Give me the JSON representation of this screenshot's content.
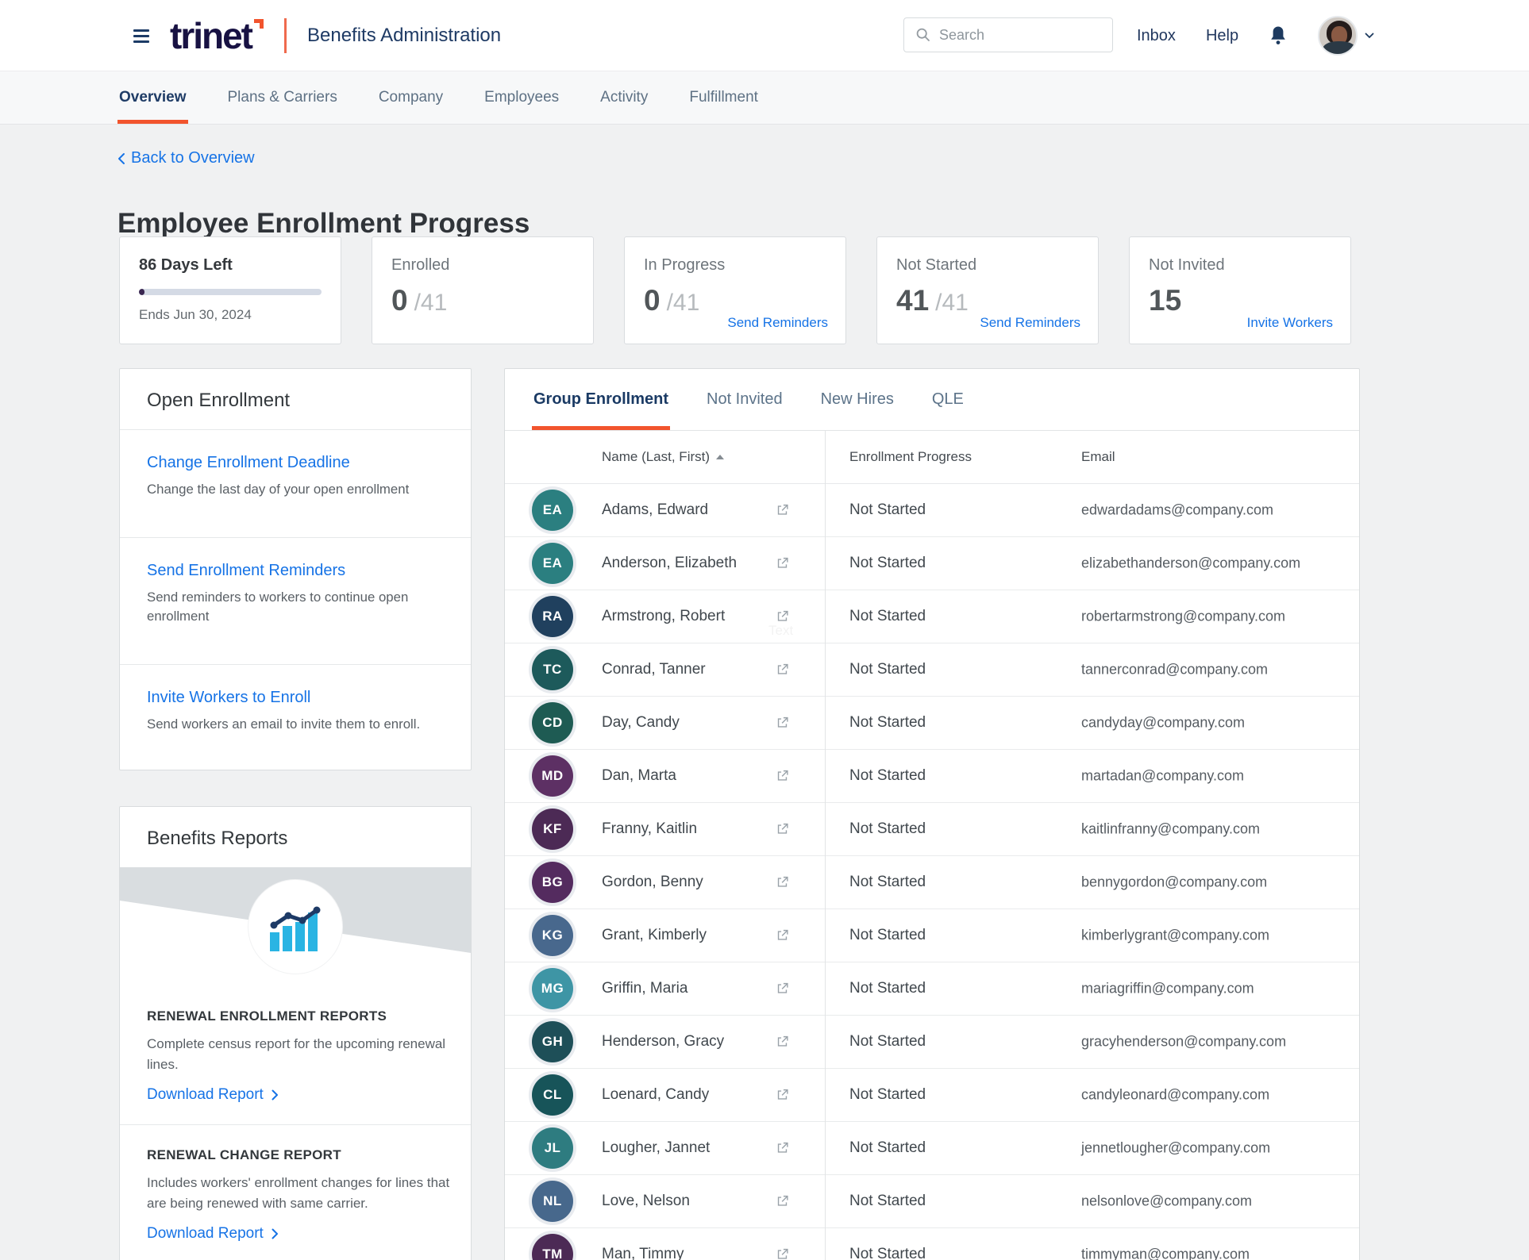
{
  "colors": {
    "accent_orange": "#f2542d",
    "link_blue": "#1673e6",
    "navy": "#1c3b66",
    "logo_navy": "#181243",
    "progress_fill": "#3a2751",
    "progress_track": "#d4dae5",
    "illustration_bars": "#2ab4e3",
    "illustration_line": "#1d3a66"
  },
  "header": {
    "logo_text": "trinet",
    "app_title": "Benefits Administration",
    "search_placeholder": "Search",
    "links": {
      "inbox": "Inbox",
      "help": "Help"
    },
    "icons": [
      "hamburger-icon",
      "search-icon",
      "bell-icon",
      "chevron-down-icon"
    ]
  },
  "nav": {
    "tabs": [
      {
        "label": "Overview",
        "active": true
      },
      {
        "label": "Plans & Carriers"
      },
      {
        "label": "Company"
      },
      {
        "label": "Employees"
      },
      {
        "label": "Activity"
      },
      {
        "label": "Fulfillment"
      }
    ]
  },
  "page": {
    "back_link": "Back to Overview",
    "title": "Employee Enrollment Progress"
  },
  "stats": {
    "cards": [
      {
        "title": "86 Days Left",
        "subtitle": "Ends Jun 30, 2024",
        "progress_percent": 3
      },
      {
        "label": "Enrolled",
        "value": "0",
        "total": "/41"
      },
      {
        "label": "In Progress",
        "value": "0",
        "total": "/41",
        "link": "Send Reminders"
      },
      {
        "label": "Not Started",
        "value": "41",
        "total": "/41",
        "link": "Send Reminders"
      },
      {
        "label": "Not Invited",
        "value": "15",
        "link": "Invite Workers"
      }
    ]
  },
  "open_enrollment": {
    "title": "Open Enrollment",
    "items": [
      {
        "link": "Change Enrollment Deadline",
        "description": "Change the last day of your open enrollment"
      },
      {
        "link": "Send Enrollment Reminders",
        "description": "Send reminders to workers to continue open enrollment"
      },
      {
        "link": "Invite Workers to Enroll",
        "description": "Send workers an email to invite them to enroll."
      }
    ]
  },
  "benefits_reports": {
    "title": "Benefits Reports",
    "illustration_icon": "bar-chart-trend-icon",
    "sections": [
      {
        "heading": "RENEWAL ENROLLMENT REPORTS",
        "description": "Complete census report for the upcoming renewal lines.",
        "link": "Download Report"
      },
      {
        "heading": "RENEWAL CHANGE REPORT",
        "description": "Includes workers' enrollment changes for lines that are being renewed with same carrier.",
        "link": "Download Report"
      }
    ]
  },
  "enrollment_table": {
    "tabs": [
      {
        "label": "Group Enrollment",
        "active": true
      },
      {
        "label": "Not Invited"
      },
      {
        "label": "New Hires"
      },
      {
        "label": "QLE"
      }
    ],
    "columns": {
      "name": "Name (Last, First)",
      "progress": "Enrollment Progress",
      "email": "Email"
    },
    "artifact_text": "Text",
    "rows": [
      {
        "name": "Adams, Edward",
        "initials": "EA",
        "avatar_color": "#2b7f80",
        "status": "Not Started",
        "email": "edwardadams@company.com"
      },
      {
        "name": "Anderson, Elizabeth",
        "initials": "EA",
        "avatar_color": "#2b7f80",
        "status": "Not Started",
        "email": "elizabethanderson@company.com"
      },
      {
        "name": "Armstrong, Robert",
        "initials": "RA",
        "avatar_color": "#20405e",
        "status": "Not Started",
        "email": "robertarmstrong@company.com"
      },
      {
        "name": "Conrad, Tanner",
        "initials": "TC",
        "avatar_color": "#1d5a5b",
        "status": "Not Started",
        "email": "tannerconrad@company.com"
      },
      {
        "name": "Day, Candy",
        "initials": "CD",
        "avatar_color": "#1e5b53",
        "status": "Not Started",
        "email": "candyday@company.com"
      },
      {
        "name": "Dan, Marta",
        "initials": "MD",
        "avatar_color": "#5d3064",
        "status": "Not Started",
        "email": "martadan@company.com"
      },
      {
        "name": "Franny, Kaitlin",
        "initials": "KF",
        "avatar_color": "#4c2a55",
        "status": "Not Started",
        "email": "kaitlinfranny@company.com"
      },
      {
        "name": "Gordon, Benny",
        "initials": "BG",
        "avatar_color": "#542b5f",
        "status": "Not Started",
        "email": "bennygordon@company.com"
      },
      {
        "name": "Grant, Kimberly",
        "initials": "KG",
        "avatar_color": "#48688d",
        "status": "Not Started",
        "email": "kimberlygrant@company.com"
      },
      {
        "name": "Griffin, Maria",
        "initials": "MG",
        "avatar_color": "#3e95a5",
        "status": "Not Started",
        "email": "mariagriffin@company.com"
      },
      {
        "name": "Henderson, Gracy",
        "initials": "GH",
        "avatar_color": "#1e4f58",
        "status": "Not Started",
        "email": "gracyhenderson@company.com"
      },
      {
        "name": "Loenard, Candy",
        "initials": "CL",
        "avatar_color": "#175459",
        "status": "Not Started",
        "email": "candyleonard@company.com"
      },
      {
        "name": "Lougher, Jannet",
        "initials": "JL",
        "avatar_color": "#2e7c80",
        "status": "Not Started",
        "email": "jennetlougher@company.com"
      },
      {
        "name": "Love, Nelson",
        "initials": "NL",
        "avatar_color": "#47688c",
        "status": "Not Started",
        "email": "nelsonlove@company.com"
      },
      {
        "name": "Man, Timmy",
        "initials": "TM",
        "avatar_color": "#4c2a55",
        "status": "Not Started",
        "email": "timmyman@company.com"
      }
    ]
  }
}
